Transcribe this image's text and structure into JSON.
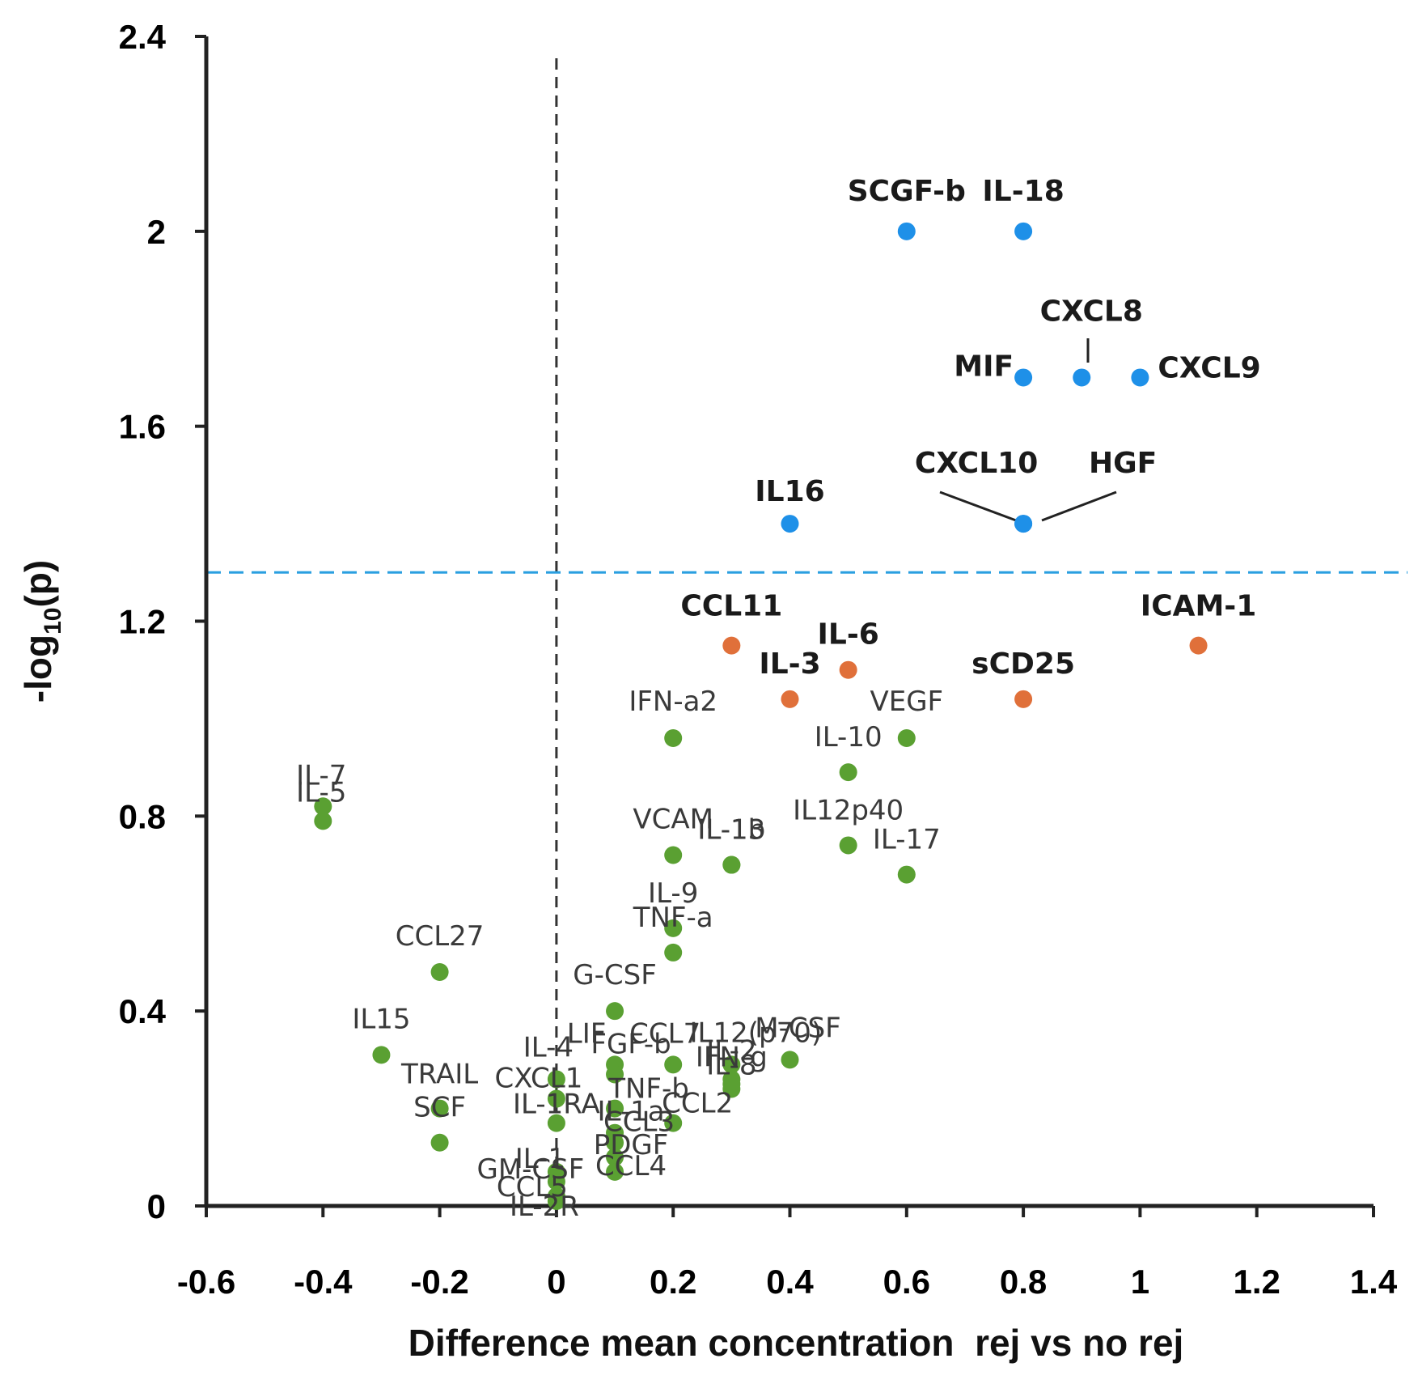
{
  "chart_data": {
    "type": "scatter",
    "title": "",
    "xlabel": "Difference mean concentration  rej vs no rej",
    "ylabel_main": "-log",
    "ylabel_sub": "10",
    "ylabel_tail": "(p)",
    "xlim": [
      -0.6,
      1.4
    ],
    "ylim": [
      0,
      2.4
    ],
    "x_ticks": [
      -0.6,
      -0.4,
      -0.2,
      0,
      0.2,
      0.4,
      0.6,
      0.8,
      1,
      1.2,
      1.4
    ],
    "x_tick_labels": [
      "-0.6",
      "-0.4",
      "-0.2",
      "0",
      "0.2",
      "0.4",
      "0.6",
      "0.8",
      "1",
      "1.2",
      "1.4"
    ],
    "y_ticks": [
      0,
      0.4,
      0.8,
      1.2,
      1.6,
      2,
      2.4
    ],
    "y_tick_labels": [
      "0",
      "0.4",
      "0.8",
      "1.2",
      "1.6",
      "2",
      "2.4"
    ],
    "threshold_y": 1.3,
    "reference_x": 0,
    "colors": {
      "significant": "#1e90e8",
      "trend": "#e0703a",
      "not_significant": "#5aa032",
      "threshold_line": "#2a9fe0",
      "reference_line": "#333333",
      "axis": "#222222"
    },
    "series": [
      {
        "name": "significant",
        "points": [
          {
            "label": "SCGF-b",
            "x": 0.6,
            "y": 2.0
          },
          {
            "label": "IL-18",
            "x": 0.8,
            "y": 2.0
          },
          {
            "label": "MIF",
            "x": 0.8,
            "y": 1.7
          },
          {
            "label": "CXCL8",
            "x": 0.9,
            "y": 1.7
          },
          {
            "label": "CXCL9",
            "x": 1.0,
            "y": 1.7
          },
          {
            "label": "IL16",
            "x": 0.4,
            "y": 1.4
          },
          {
            "label": "CXCL10",
            "x": 0.8,
            "y": 1.4
          },
          {
            "label": "HGF",
            "x": 0.8,
            "y": 1.4
          }
        ]
      },
      {
        "name": "trend",
        "points": [
          {
            "label": "CCL11",
            "x": 0.3,
            "y": 1.15
          },
          {
            "label": "ICAM-1",
            "x": 1.1,
            "y": 1.15
          },
          {
            "label": "IL-6",
            "x": 0.5,
            "y": 1.1
          },
          {
            "label": "IL-3",
            "x": 0.4,
            "y": 1.04
          },
          {
            "label": "sCD25",
            "x": 0.8,
            "y": 1.04
          }
        ]
      },
      {
        "name": "not_significant",
        "points": [
          {
            "label": "IFN-a2",
            "x": 0.2,
            "y": 0.96
          },
          {
            "label": "VEGF",
            "x": 0.6,
            "y": 0.96
          },
          {
            "label": "IL-10",
            "x": 0.5,
            "y": 0.89
          },
          {
            "label": "IL-7",
            "x": -0.4,
            "y": 0.82
          },
          {
            "label": "IL-5",
            "x": -0.4,
            "y": 0.79
          },
          {
            "label": "IL12p40",
            "x": 0.5,
            "y": 0.74
          },
          {
            "label": "VCAM",
            "x": 0.2,
            "y": 0.72
          },
          {
            "label": "IL-13",
            "x": 0.3,
            "y": 0.7
          },
          {
            "label": "IL-1b",
            "x": 0.3,
            "y": 0.7
          },
          {
            "label": "IL-17",
            "x": 0.6,
            "y": 0.68
          },
          {
            "label": "IL-9",
            "x": 0.2,
            "y": 0.57
          },
          {
            "label": "TNF-a",
            "x": 0.2,
            "y": 0.52
          },
          {
            "label": "CCL27",
            "x": -0.2,
            "y": 0.48
          },
          {
            "label": "G-CSF",
            "x": 0.1,
            "y": 0.4
          },
          {
            "label": "IL15",
            "x": -0.3,
            "y": 0.31
          },
          {
            "label": "M-CSF",
            "x": 0.4,
            "y": 0.3
          },
          {
            "label": "LIF",
            "x": 0.1,
            "y": 0.29
          },
          {
            "label": "CCL7",
            "x": 0.2,
            "y": 0.29
          },
          {
            "label": "IL12(p70)",
            "x": 0.3,
            "y": 0.29
          },
          {
            "label": "IL-2",
            "x": 0.3,
            "y": 0.26
          },
          {
            "label": "IFN-g",
            "x": 0.3,
            "y": 0.25
          },
          {
            "label": "IL-8",
            "x": 0.3,
            "y": 0.24
          },
          {
            "label": "FGF-b",
            "x": 0.1,
            "y": 0.27
          },
          {
            "label": "IL-4",
            "x": 0.0,
            "y": 0.26
          },
          {
            "label": "TRAIL",
            "x": -0.2,
            "y": 0.2
          },
          {
            "label": "CXCL1",
            "x": 0.0,
            "y": 0.22
          },
          {
            "label": "TNF-b",
            "x": 0.1,
            "y": 0.2
          },
          {
            "label": "CCL2",
            "x": 0.2,
            "y": 0.17
          },
          {
            "label": "SCF",
            "x": -0.2,
            "y": 0.13
          },
          {
            "label": "IL-1RA",
            "x": 0.0,
            "y": 0.17
          },
          {
            "label": "IL-1a",
            "x": 0.1,
            "y": 0.15
          },
          {
            "label": "CCL3",
            "x": 0.1,
            "y": 0.13
          },
          {
            "label": "PDGF",
            "x": 0.1,
            "y": 0.1
          },
          {
            "label": "IL-1",
            "x": 0.0,
            "y": 0.07
          },
          {
            "label": "GM-CSF",
            "x": 0.0,
            "y": 0.05
          },
          {
            "label": "CCL5",
            "x": 0.0,
            "y": 0.02
          },
          {
            "label": "CCL4",
            "x": 0.1,
            "y": 0.07
          },
          {
            "label": "IL-2R",
            "x": 0.0,
            "y": 0.01
          }
        ]
      }
    ]
  }
}
